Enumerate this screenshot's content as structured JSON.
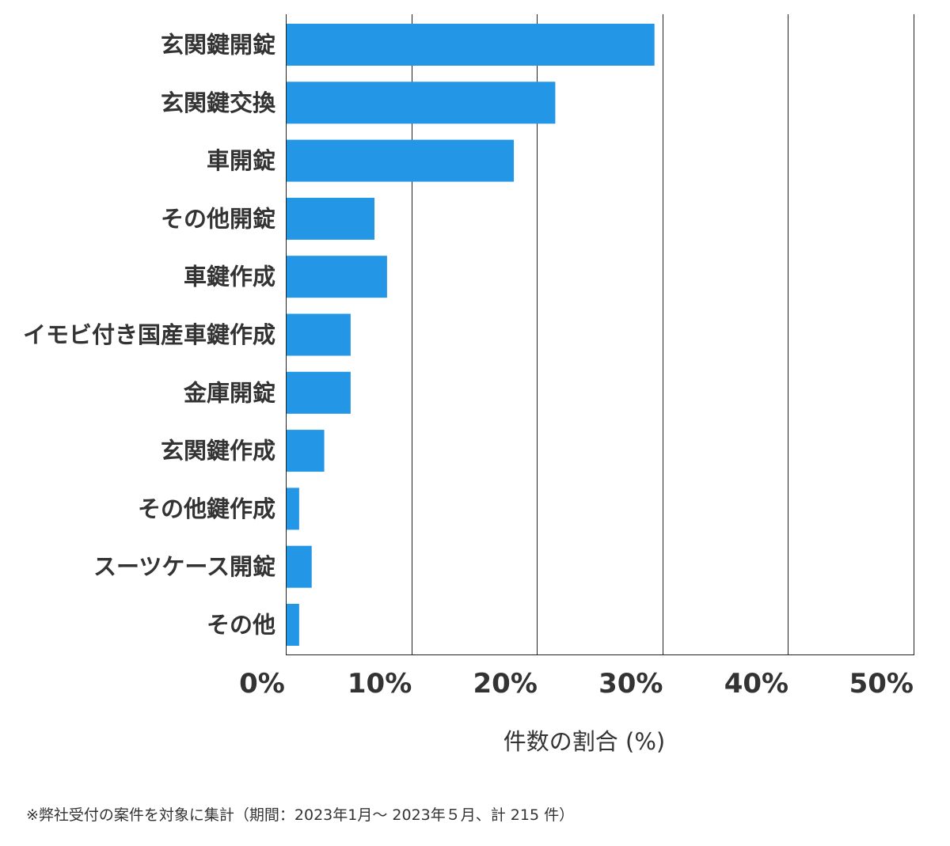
{
  "chart_data": {
    "type": "bar",
    "orientation": "horizontal",
    "categories": [
      "玄関鍵開錠",
      "玄関鍵交換",
      "車開錠",
      "その他開錠",
      "車鍵作成",
      "イモビ付き国産車鍵作成",
      "金庫開錠",
      "玄関鍵作成",
      "その他鍵作成",
      "スーツケース開錠",
      "その他"
    ],
    "values": [
      29.3,
      21.4,
      18.1,
      7.0,
      8.0,
      5.1,
      5.1,
      3.0,
      1.0,
      2.0,
      1.0
    ],
    "xlim": [
      0,
      50
    ],
    "xticks": [
      0,
      10,
      20,
      30,
      40,
      50
    ],
    "xtick_labels": [
      "0%",
      "10%",
      "20%",
      "30%",
      "40%",
      "50%"
    ],
    "xlabel": "件数の割合 (%)",
    "grid": "vertical",
    "bar_color": "#2496e6",
    "grid_color": "#222222",
    "text_color": "#333333"
  },
  "footnote": "※弊社受付の案件を対象に集計（期間：2023年1月～ 2023年５月、計 215 件）"
}
